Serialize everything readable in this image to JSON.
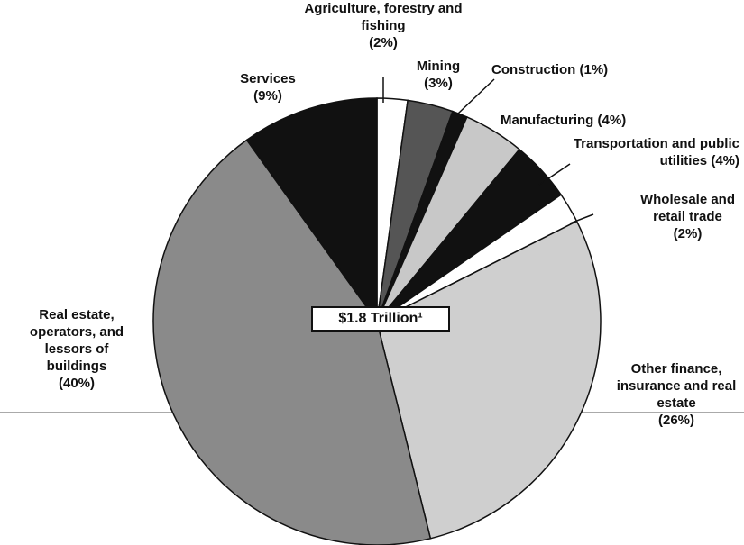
{
  "chart_data": {
    "type": "pie",
    "center_label": "$1.8 Trillion¹",
    "categories": [
      "Agriculture, forestry and fishing",
      "Mining",
      "Construction",
      "Manufacturing",
      "Transportation and public utilities",
      "Wholesale and retail trade",
      "Other finance, insurance and real estate",
      "Real estate, operators, and lessors of buildings",
      "Services"
    ],
    "values": [
      2,
      3,
      1,
      4,
      4,
      2,
      26,
      40,
      9
    ],
    "value_labels": [
      "(2%)",
      "(3%)",
      "(1%)",
      "(4%)",
      "(4%)",
      "(2%)",
      "(26%)",
      "(40%)",
      "(9%)"
    ],
    "colors": [
      "#ffffff",
      "#555555",
      "#111111",
      "#c8c8c8",
      "#111111",
      "#ffffff",
      "#cfcfcf",
      "#8a8a8a",
      "#111111"
    ]
  }
}
